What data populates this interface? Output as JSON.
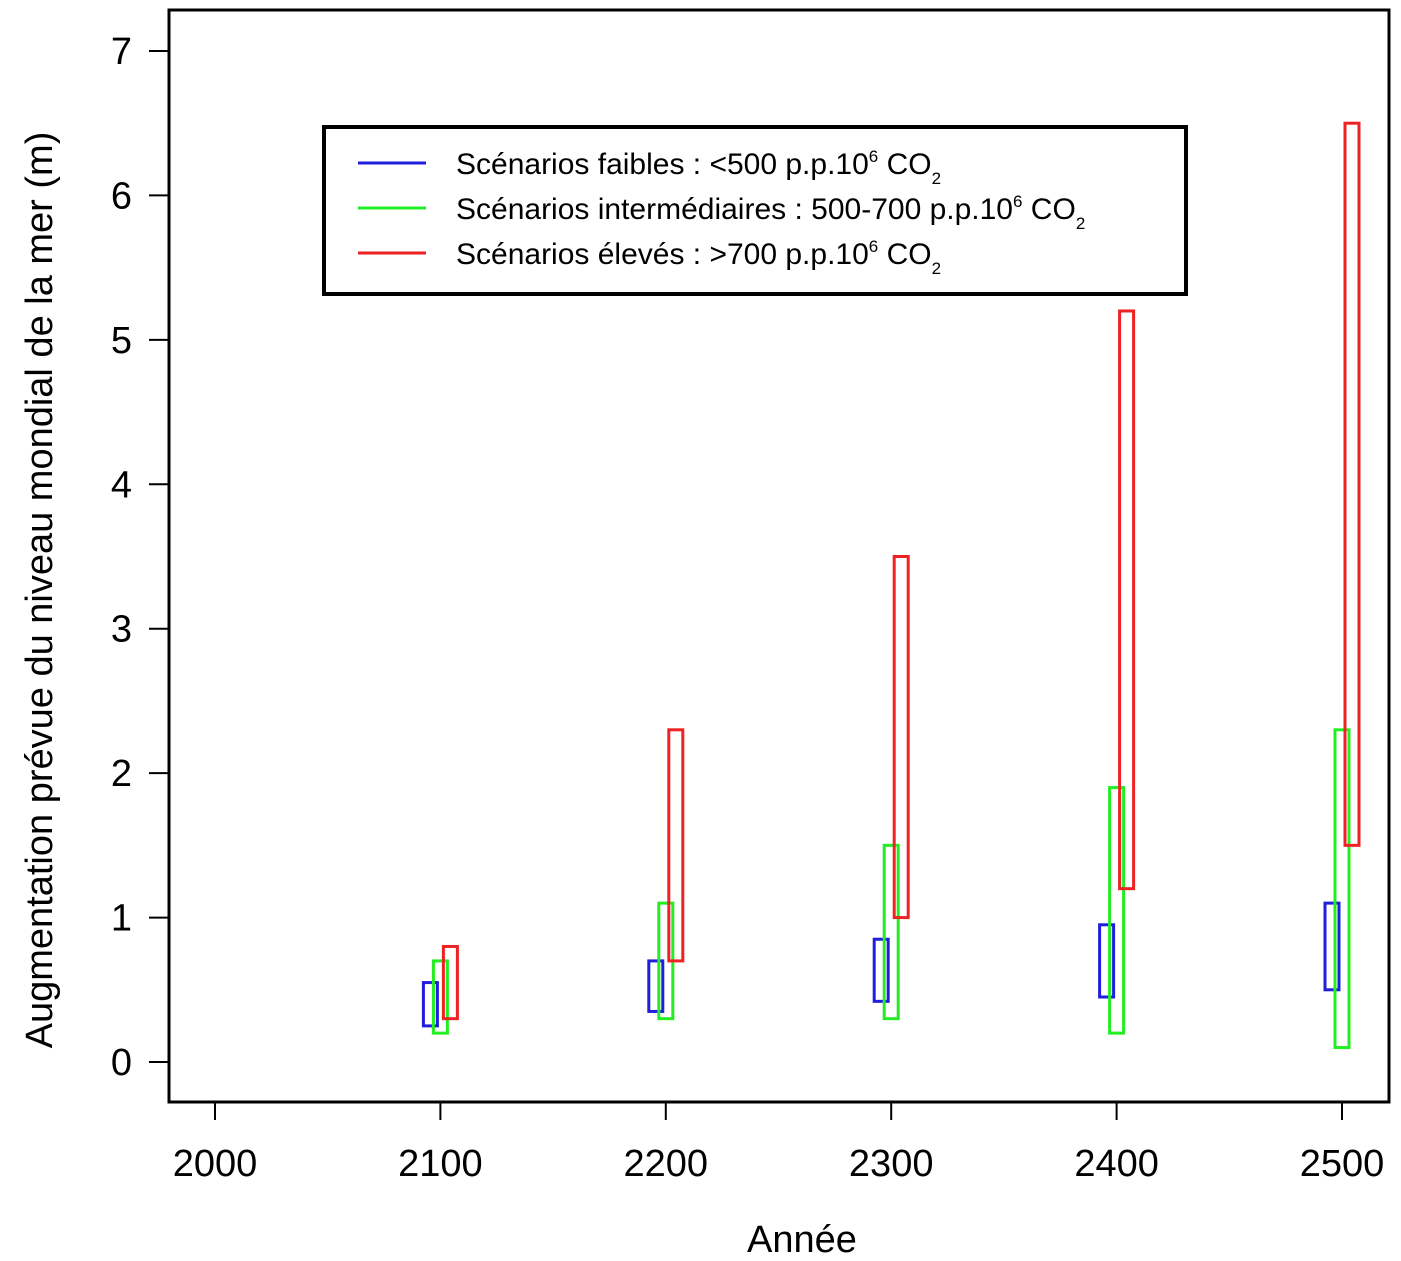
{
  "chart_data": {
    "type": "bar",
    "subtype": "floating-range",
    "xlabel": "Année",
    "ylabel": "Augmentation prévue du niveau mondial de la mer (m)",
    "xlim": [
      1980,
      2520
    ],
    "ylim": [
      -0.25,
      7.1
    ],
    "x_ticks": [
      2000,
      2100,
      2200,
      2300,
      2400,
      2500
    ],
    "y_ticks": [
      0,
      1,
      2,
      3,
      4,
      5,
      6,
      7
    ],
    "grid": false,
    "legend_position": "top-center",
    "categories": [
      2100,
      2200,
      2300,
      2400,
      2500
    ],
    "series": [
      {
        "name": "Scénarios faibles",
        "legend_label": {
          "prefix": "Scénarios faibles :  <500 p.p.10",
          "sup": "6",
          "mid": " CO",
          "sub": "2"
        },
        "color": "#1f1fdd",
        "ranges": [
          [
            0.25,
            0.55
          ],
          [
            0.35,
            0.7
          ],
          [
            0.42,
            0.85
          ],
          [
            0.45,
            0.95
          ],
          [
            0.5,
            1.1
          ]
        ]
      },
      {
        "name": "Scénarios intermédiaires",
        "legend_label": {
          "prefix": "Scénarios intermédiaires : 500-700 p.p.10",
          "sup": "6",
          "mid": " CO",
          "sub": "2"
        },
        "color": "#22ee22",
        "ranges": [
          [
            0.2,
            0.7
          ],
          [
            0.3,
            1.1
          ],
          [
            0.3,
            1.5
          ],
          [
            0.2,
            1.9
          ],
          [
            0.1,
            2.3
          ]
        ]
      },
      {
        "name": "Scénarios élevés",
        "legend_label": {
          "prefix": "Scénarios élevés :  >700 p.p.10",
          "sup": "6",
          "mid": " CO",
          "sub": "2"
        },
        "color": "#ee2222",
        "ranges": [
          [
            0.3,
            0.8
          ],
          [
            0.7,
            2.3
          ],
          [
            1.0,
            3.5
          ],
          [
            1.2,
            5.2
          ],
          [
            1.5,
            6.5
          ]
        ]
      }
    ]
  }
}
